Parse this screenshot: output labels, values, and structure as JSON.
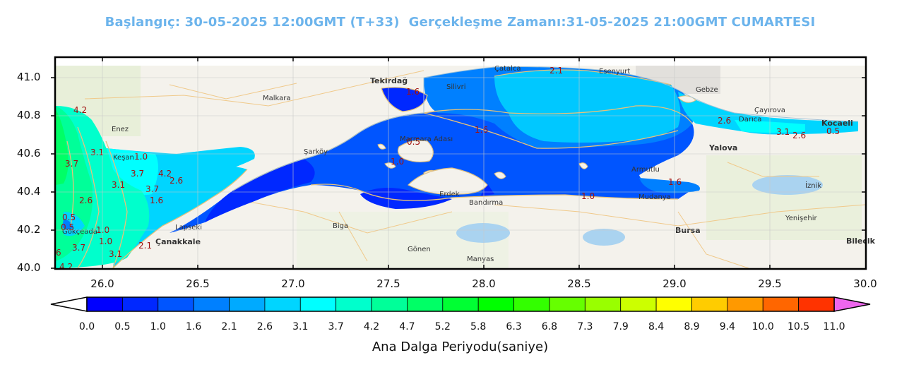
{
  "title": "Başlangıç: 30-05-2025 12:00GMT (T+33)  Gerçekleşme Zamanı:31-05-2025 21:00GMT CUMARTESI",
  "map": {
    "lat_ticks": [
      "41.0",
      "40.8",
      "40.6",
      "40.4",
      "40.2",
      "40.0"
    ],
    "lon_ticks": [
      "26.0",
      "26.5",
      "27.0",
      "27.5",
      "28.0",
      "28.5",
      "29.0",
      "29.5",
      "30.0"
    ],
    "places": [
      "Tekirdağ",
      "Yalova",
      "Bursa",
      "Kocaeli",
      "Çanakkale",
      "Bandırma",
      "Mudanya",
      "Erdek",
      "Biga",
      "Gönen",
      "Manyas",
      "Şarköy",
      "Keşan",
      "Malkara",
      "Enez",
      "Gökçeada",
      "Çatalca",
      "Esenyurt",
      "Silivri",
      "Darıca",
      "Çayırova",
      "Gebze",
      "İznik",
      "Yenişehir",
      "Armutlu",
      "Bilecik",
      "Lapseki",
      "Marmara Adası"
    ],
    "contour_labels": [
      "2.1",
      "1.6",
      "1.6",
      "2.6",
      "3.1",
      "2.6",
      "0.5",
      "0.5",
      "1.0",
      "1.6",
      "1.0",
      "4.2",
      "3.1",
      "3.7",
      "1.0",
      "3.1",
      "3.7",
      "4.2",
      "2.6",
      "3.7",
      "1.6",
      "2.6",
      "0.5",
      "1.0",
      "3.7",
      "6",
      "2.1",
      "3.1",
      "4.2",
      "0.5",
      "1.0"
    ]
  },
  "colorbar": {
    "title": "Ana Dalga Periyodu(saniye)",
    "levels": [
      "0.0",
      "0.5",
      "1.0",
      "1.6",
      "2.1",
      "2.6",
      "3.1",
      "3.7",
      "4.2",
      "4.7",
      "5.2",
      "5.8",
      "6.3",
      "6.8",
      "7.3",
      "7.9",
      "8.4",
      "8.9",
      "9.4",
      "10.0",
      "10.5",
      "11.0"
    ],
    "colors": [
      "#0000ff",
      "#0028ff",
      "#0055ff",
      "#0080ff",
      "#00aaff",
      "#00d5ff",
      "#00ffff",
      "#00ffcc",
      "#00ff99",
      "#00ff66",
      "#00ff33",
      "#00ff00",
      "#33ff00",
      "#66ff00",
      "#99ff00",
      "#ccff00",
      "#ffff00",
      "#ffcc00",
      "#ff9900",
      "#ff6600",
      "#ff3300",
      "#ff0000"
    ],
    "under_color": "#ffffff",
    "over_color": "#ee66ee"
  }
}
